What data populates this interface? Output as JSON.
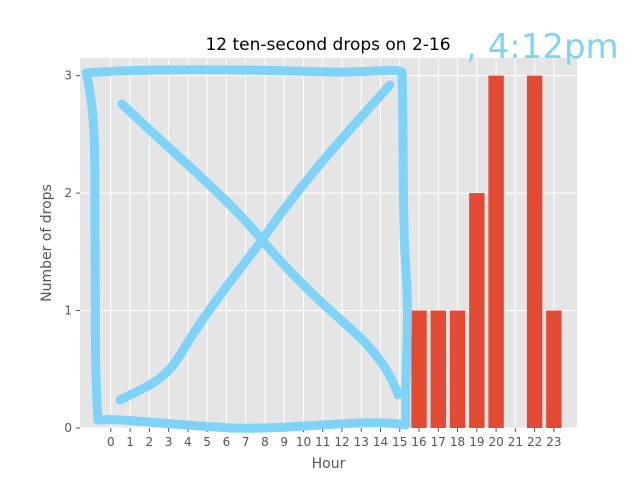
{
  "chart_data": {
    "type": "bar",
    "title": "12 ten-second drops on 2-16",
    "annotation": ", 4:12pm",
    "xlabel": "Hour",
    "ylabel": "Number of drops",
    "categories": [
      "0",
      "1",
      "2",
      "3",
      "4",
      "5",
      "6",
      "7",
      "8",
      "9",
      "10",
      "11",
      "12",
      "13",
      "14",
      "15",
      "16",
      "17",
      "18",
      "19",
      "20",
      "21",
      "22",
      "23"
    ],
    "values": [
      0,
      0,
      0,
      0,
      0,
      0,
      0,
      0,
      0,
      0,
      0,
      0,
      0,
      0,
      0,
      0,
      1,
      1,
      1,
      2,
      3,
      0,
      3,
      1
    ],
    "yticks": [
      0,
      1,
      2,
      3
    ],
    "ylim": [
      0,
      3.15
    ],
    "grid": true,
    "legend": "none",
    "colors": {
      "bar": "#e24a33",
      "plot_bg": "#e5e5e5",
      "grid": "#ffffff",
      "scribble": "#7fd3f7"
    }
  }
}
